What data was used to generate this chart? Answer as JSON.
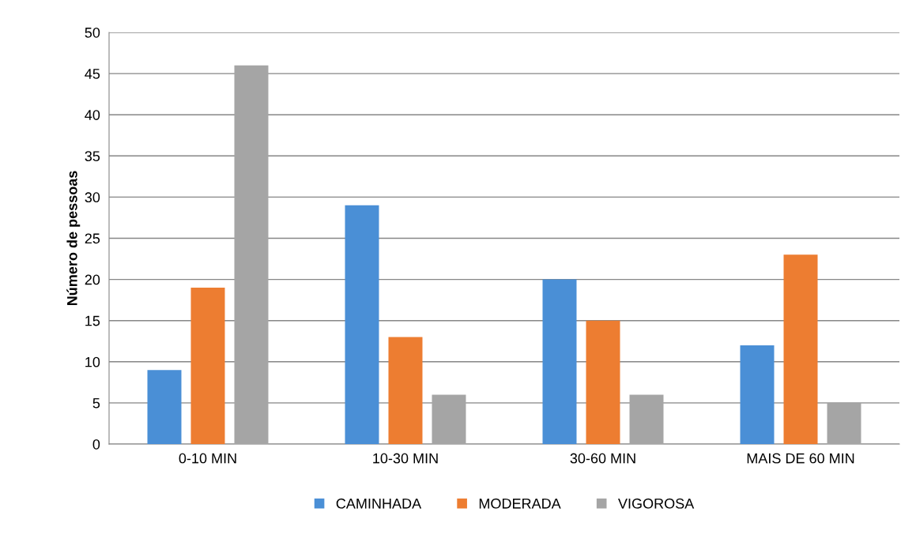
{
  "chart_data": {
    "type": "bar",
    "ylabel": "Número de pessoas",
    "categories": [
      "0-10 MIN",
      "10-30 MIN",
      "30-60 MIN",
      "MAIS DE 60 MIN"
    ],
    "series": [
      {
        "name": "CAMINHADA",
        "color": "#4a8fd6",
        "values": [
          9,
          29,
          20,
          12
        ]
      },
      {
        "name": "MODERADA",
        "color": "#ed7d31",
        "values": [
          19,
          13,
          15,
          23
        ]
      },
      {
        "name": "VIGOROSA",
        "color": "#a5a5a5",
        "values": [
          46,
          6,
          6,
          5
        ]
      }
    ],
    "ylim": [
      0,
      50
    ],
    "yticks": [
      0,
      5,
      10,
      15,
      20,
      25,
      30,
      35,
      40,
      45,
      50
    ],
    "grid": "y",
    "legend": "bottom"
  }
}
